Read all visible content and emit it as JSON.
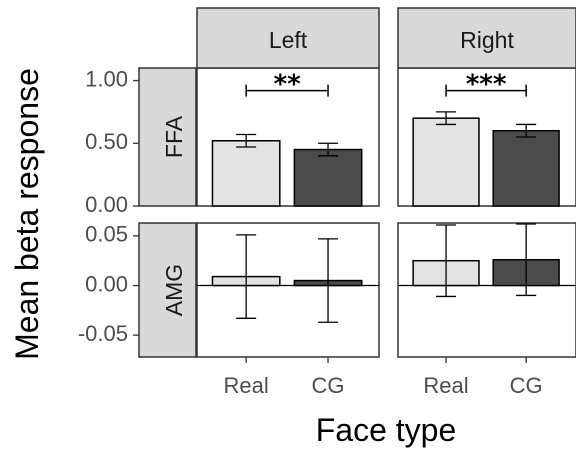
{
  "chart_data": {
    "type": "bar",
    "xlabel": "Face type",
    "ylabel": "Mean beta response",
    "categories": [
      "Real",
      "CG"
    ],
    "colors": {
      "Real": "#e3e3e3",
      "CG": "#4b4b4b"
    },
    "facet_columns": [
      "Left",
      "Right"
    ],
    "facet_rows": [
      "FFA",
      "AMG"
    ],
    "grid": false,
    "panels": [
      {
        "row": "FFA",
        "col": "Left",
        "ylim": [
          0,
          1.1
        ],
        "yticks": [
          "1.00",
          "0.50",
          "0.00"
        ],
        "tick_values": [
          1.0,
          0.5,
          0.0
        ],
        "values": [
          0.52,
          0.45
        ],
        "err_low": [
          0.47,
          0.4
        ],
        "err_high": [
          0.57,
          0.5
        ],
        "significance": "**",
        "sig_y": 0.92
      },
      {
        "row": "FFA",
        "col": "Right",
        "ylim": [
          0,
          1.1
        ],
        "values": [
          0.7,
          0.6
        ],
        "err_low": [
          0.65,
          0.55
        ],
        "err_high": [
          0.75,
          0.65
        ],
        "significance": "***",
        "sig_y": 0.92
      },
      {
        "row": "AMG",
        "col": "Left",
        "ylim": [
          -0.072,
          0.063
        ],
        "yticks": [
          "0.05",
          "0.00",
          "-0.05"
        ],
        "tick_values": [
          0.05,
          0.0,
          -0.05
        ],
        "values": [
          0.009,
          0.005
        ],
        "err_low": [
          -0.033,
          -0.037
        ],
        "err_high": [
          0.051,
          0.047
        ],
        "zero_line": true
      },
      {
        "row": "AMG",
        "col": "Right",
        "ylim": [
          -0.072,
          0.063
        ],
        "values": [
          0.025,
          0.026
        ],
        "err_low": [
          -0.011,
          -0.01
        ],
        "err_high": [
          0.061,
          0.062
        ],
        "zero_line": true
      }
    ]
  }
}
